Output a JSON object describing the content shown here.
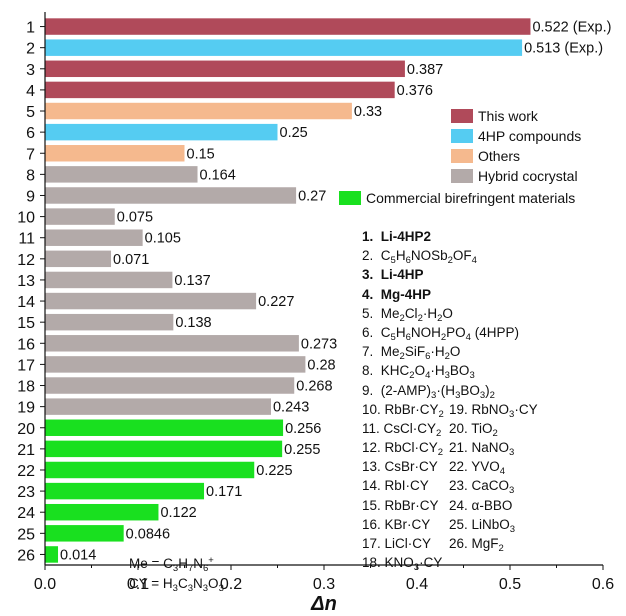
{
  "chart_data": {
    "type": "bar",
    "orientation": "horizontal",
    "xlabel": "Δn",
    "xlim": [
      0,
      0.6
    ],
    "xticks": [
      "0.0",
      "0.1",
      "0.2",
      "0.3",
      "0.4",
      "0.5",
      "0.6"
    ],
    "grid": false,
    "categories": [
      "1",
      "2",
      "3",
      "4",
      "5",
      "6",
      "7",
      "8",
      "9",
      "10",
      "11",
      "12",
      "13",
      "14",
      "15",
      "16",
      "17",
      "18",
      "19",
      "20",
      "21",
      "22",
      "23",
      "24",
      "25",
      "26"
    ],
    "values": [
      0.522,
      0.513,
      0.387,
      0.376,
      0.33,
      0.25,
      0.15,
      0.164,
      0.27,
      0.075,
      0.105,
      0.071,
      0.137,
      0.227,
      0.138,
      0.273,
      0.28,
      0.268,
      0.243,
      0.256,
      0.255,
      0.225,
      0.171,
      0.122,
      0.0846,
      0.014
    ],
    "value_labels": [
      "0.522 (Exp.)",
      "0.513 (Exp.)",
      "0.387",
      "0.376",
      "0.33",
      "0.25",
      "0.15",
      "0.164",
      "0.27",
      "0.075",
      "0.105",
      "0.071",
      "0.137",
      "0.227",
      "0.138",
      "0.273",
      "0.28",
      "0.268",
      "0.243",
      "0.256",
      "0.255",
      "0.225",
      "0.171",
      "0.122",
      "0.0846",
      "0.014"
    ],
    "groups": [
      "this_work",
      "4hp",
      "this_work",
      "this_work",
      "others",
      "4hp",
      "others",
      "hybrid",
      "hybrid",
      "hybrid",
      "hybrid",
      "hybrid",
      "hybrid",
      "hybrid",
      "hybrid",
      "hybrid",
      "hybrid",
      "hybrid",
      "hybrid",
      "commercial",
      "commercial",
      "commercial",
      "commercial",
      "commercial",
      "commercial",
      "commercial"
    ],
    "legend": [
      {
        "key": "this_work",
        "label": "This work",
        "color": "#b04a5a"
      },
      {
        "key": "4hp",
        "label": "4HP compounds",
        "color": "#55ccf2"
      },
      {
        "key": "others",
        "label": "Others",
        "color": "#f5b98e"
      },
      {
        "key": "hybrid",
        "label": "Hybrid cocrystal",
        "color": "#b3aaa9"
      },
      {
        "key": "commercial",
        "label": "Commercial birefringent materials",
        "color": "#19e01f"
      }
    ],
    "legend_position": "right"
  },
  "compound_list": [
    {
      "html": "1. &nbsp;Li-4HP2",
      "bold": true
    },
    {
      "html": "2. &nbsp;C<sub>5</sub>H<sub>6</sub>NOSb<sub>2</sub>OF<sub>4</sub>",
      "bold": false
    },
    {
      "html": "3. &nbsp;Li-4HP",
      "bold": true
    },
    {
      "html": "4. &nbsp;Mg-4HP",
      "bold": true
    },
    {
      "html": "5. &nbsp;Me<sub>2</sub>Cl<sub>2</sub>·H<sub>2</sub>O",
      "bold": false
    },
    {
      "html": "6. &nbsp;C<sub>5</sub>H<sub>6</sub>NOH<sub>2</sub>PO<sub>4</sub> (4HPP)",
      "bold": false
    },
    {
      "html": "7. &nbsp;Me<sub>2</sub>SiF<sub>6</sub>·H<sub>2</sub>O",
      "bold": false
    },
    {
      "html": "8. &nbsp;KHC<sub>2</sub>O<sub>4</sub>·H<sub>3</sub>BO<sub>3</sub>",
      "bold": false
    },
    {
      "html": "9. &nbsp;(2-AMP)<sub>3</sub>·(H<sub>3</sub>BO<sub>3</sub>)<sub>2</sub>",
      "bold": false
    }
  ],
  "compound_pairs": [
    [
      "10. RbBr·CY<sub>2</sub>",
      "19. RbNO<sub>3</sub>·CY"
    ],
    [
      "11. CsCl·CY<sub>2</sub>",
      "20. TiO<sub>2</sub>"
    ],
    [
      "12. RbCl·CY<sub>2</sub>",
      "21. NaNO<sub>3</sub>"
    ],
    [
      "13. CsBr·CY",
      "22. YVO<sub>4</sub>"
    ],
    [
      "14. RbI·CY",
      "23. CaCO<sub>3</sub>"
    ],
    [
      "15. RbBr·CY",
      "24. α-BBO"
    ],
    [
      "16. KBr·CY",
      "25. LiNbO<sub>3</sub>"
    ],
    [
      "17. LiCl·CY",
      "26. MgF<sub>2</sub>"
    ],
    [
      "18. KNO<sub>3</sub>·CY",
      ""
    ]
  ],
  "notes": [
    "Me = C<sub>3</sub>H<sub>7</sub>N<sub>6</sub><sup>+</sup>",
    "CY = H<sub>3</sub>C<sub>3</sub>N<sub>3</sub>O<sub>3</sub>"
  ]
}
